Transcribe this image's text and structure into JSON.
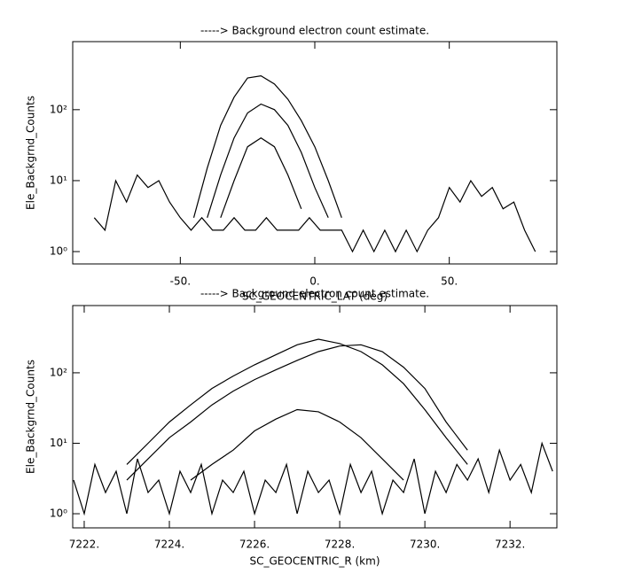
{
  "chart_data": [
    {
      "type": "line",
      "title": "-----> Background electron count estimate.",
      "xlabel": "SC_GEOCENTRIC_LAT (deg)",
      "ylabel": "Ele_Backgrnd_Counts",
      "log_y": true,
      "xlim": [
        -90,
        90
      ],
      "ylim": [
        0.67,
        910
      ],
      "xticks": [
        {
          "value": -50,
          "label": "-50."
        },
        {
          "value": 0,
          "label": "0."
        },
        {
          "value": 50,
          "label": "50."
        }
      ],
      "yticks": [
        {
          "value": 1,
          "label": "10⁰"
        },
        {
          "value": 10,
          "label": "10¹"
        },
        {
          "value": 100,
          "label": "10²"
        }
      ],
      "series": [
        {
          "color": "#000000",
          "x": [
            -82,
            -78,
            -74,
            -70,
            -66,
            -62,
            -58,
            -54,
            -50,
            -46,
            -42,
            -38,
            -34,
            -30,
            -26,
            -22,
            -18,
            -14,
            -10,
            -6,
            -2,
            2,
            6,
            10,
            14,
            18,
            22,
            26,
            30,
            34,
            38,
            42,
            46,
            50,
            54,
            58,
            62,
            66,
            70,
            74,
            78,
            82
          ],
          "values": [
            3,
            2,
            10,
            5,
            12,
            8,
            10,
            5,
            3,
            2,
            3,
            2,
            2,
            3,
            2,
            2,
            3,
            2,
            2,
            2,
            3,
            2,
            2,
            2,
            1,
            2,
            1,
            2,
            1,
            2,
            1,
            2,
            3,
            8,
            5,
            10,
            6,
            8,
            4,
            5,
            2,
            1
          ]
        },
        {
          "color": "#000000",
          "x": [
            -45,
            -40,
            -35,
            -30,
            -25,
            -20,
            -15,
            -10,
            -5,
            0,
            5,
            10
          ],
          "values": [
            3,
            15,
            60,
            150,
            280,
            300,
            230,
            140,
            70,
            30,
            10,
            3
          ]
        },
        {
          "color": "#000000",
          "x": [
            -45,
            -40,
            -35,
            -30,
            -25,
            -20,
            -15,
            -10,
            -5,
            0,
            5,
            10
          ],
          "values": [
            null,
            3,
            12,
            40,
            90,
            120,
            100,
            60,
            25,
            8,
            3,
            null
          ]
        },
        {
          "color": "#000000",
          "x": [
            -45,
            -40,
            -35,
            -30,
            -25,
            -20,
            -15,
            -10,
            -5,
            0,
            5,
            10
          ],
          "values": [
            null,
            null,
            3,
            10,
            30,
            40,
            30,
            12,
            4,
            null,
            null,
            null
          ]
        }
      ]
    },
    {
      "type": "line",
      "title": "-----> Background electron count estimate.",
      "xlabel": "SC_GEOCENTRIC_R (km)",
      "ylabel": "Ele_Backgrnd_Counts",
      "log_y": true,
      "xlim": [
        7221.73,
        7233.1
      ],
      "ylim": [
        0.63,
        900
      ],
      "xticks": [
        {
          "value": 7222,
          "label": "7222."
        },
        {
          "value": 7224,
          "label": "7224."
        },
        {
          "value": 7226,
          "label": "7226."
        },
        {
          "value": 7228,
          "label": "7228."
        },
        {
          "value": 7230,
          "label": "7230."
        },
        {
          "value": 7232,
          "label": "7232."
        }
      ],
      "yticks": [
        {
          "value": 1,
          "label": "10⁰"
        },
        {
          "value": 10,
          "label": "10¹"
        },
        {
          "value": 100,
          "label": "10²"
        }
      ],
      "series": [
        {
          "color": "#000000",
          "x": [
            7221.75,
            7222,
            7222.25,
            7222.5,
            7222.75,
            7223,
            7223.25,
            7223.5,
            7223.75,
            7224,
            7224.25,
            7224.5,
            7224.75,
            7225,
            7225.25,
            7225.5,
            7225.75,
            7226,
            7226.25,
            7226.5,
            7226.75,
            7227,
            7227.25,
            7227.5,
            7227.75,
            7228,
            7228.25,
            7228.5,
            7228.75,
            7229,
            7229.25,
            7229.5,
            7229.75,
            7230,
            7230.25,
            7230.5,
            7230.75,
            7231,
            7231.25,
            7231.5,
            7231.75,
            7232,
            7232.25,
            7232.5,
            7232.75,
            7233
          ],
          "values": [
            3,
            1,
            5,
            2,
            4,
            1,
            6,
            2,
            3,
            1,
            4,
            2,
            5,
            1,
            3,
            2,
            4,
            1,
            3,
            2,
            5,
            1,
            4,
            2,
            3,
            1,
            5,
            2,
            4,
            1,
            3,
            2,
            6,
            1,
            4,
            2,
            5,
            3,
            6,
            2,
            8,
            3,
            5,
            2,
            10,
            4
          ]
        },
        {
          "color": "#000000",
          "x": [
            7223,
            7223.5,
            7224,
            7224.5,
            7225,
            7225.5,
            7226,
            7226.5,
            7227,
            7227.5,
            7228,
            7228.5,
            7229,
            7229.5,
            7230,
            7230.5,
            7231
          ],
          "values": [
            5,
            10,
            20,
            35,
            60,
            90,
            130,
            180,
            250,
            300,
            260,
            200,
            130,
            70,
            30,
            12,
            5
          ]
        },
        {
          "color": "#000000",
          "x": [
            7223,
            7223.5,
            7224,
            7224.5,
            7225,
            7225.5,
            7226,
            7226.5,
            7227,
            7227.5,
            7228,
            7228.5,
            7229,
            7229.5,
            7230,
            7230.5,
            7231
          ],
          "values": [
            3,
            6,
            12,
            20,
            35,
            55,
            80,
            110,
            150,
            200,
            240,
            250,
            200,
            120,
            60,
            20,
            8
          ]
        },
        {
          "color": "#000000",
          "x": [
            7223,
            7223.5,
            7224,
            7224.5,
            7225,
            7225.5,
            7226,
            7226.5,
            7227,
            7227.5,
            7228,
            7228.5,
            7229,
            7229.5,
            7230,
            7230.5,
            7231
          ],
          "values": [
            null,
            null,
            null,
            3,
            5,
            8,
            15,
            22,
            30,
            28,
            20,
            12,
            6,
            3,
            null,
            null,
            null
          ]
        }
      ]
    }
  ]
}
